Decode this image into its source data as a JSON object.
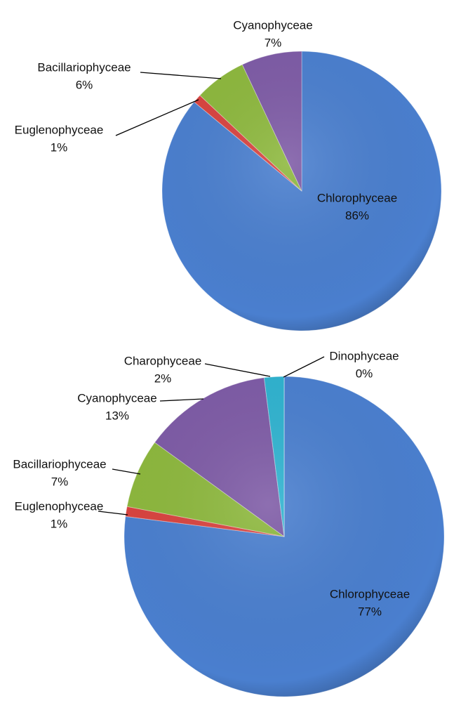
{
  "chart_data": [
    {
      "type": "pie",
      "categories": [
        "Chlorophyceae",
        "Euglenophyceae",
        "Bacillariophyceae",
        "Cyanophyceae"
      ],
      "values": [
        86,
        1,
        6,
        7
      ],
      "value_labels": [
        "86%",
        "1%",
        "6%",
        "7%"
      ],
      "colors": [
        "#4a7fcf",
        "#d9433f",
        "#8db83d",
        "#7e5ba6"
      ]
    },
    {
      "type": "pie",
      "categories": [
        "Chlorophyceae",
        "Euglenophyceae",
        "Bacillariophyceae",
        "Cyanophyceae",
        "Charophyceae",
        "Dinophyceae"
      ],
      "values": [
        77,
        1,
        7,
        13,
        2,
        0
      ],
      "value_labels": [
        "77%",
        "1%",
        "7%",
        "13%",
        "2%",
        "0%"
      ],
      "colors": [
        "#4a7fcf",
        "#d9433f",
        "#8db83d",
        "#7e5ba6",
        "#2fb3d0",
        "#e08a2e"
      ]
    }
  ]
}
